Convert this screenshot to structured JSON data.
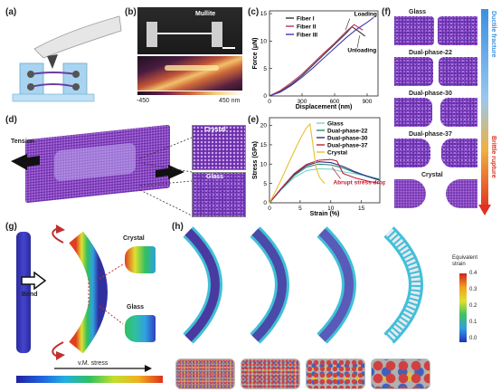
{
  "panels": {
    "a": "(a)",
    "b": "(b)",
    "c": "(c)",
    "d": "(d)",
    "e": "(e)",
    "f": "(f)",
    "g": "(g)",
    "h": "(h)"
  },
  "b": {
    "sem_label": "Mullite",
    "afm_left_tick": "-450",
    "afm_right_tick": "450 nm"
  },
  "c": {
    "legend": [
      "Fiber I",
      "Fiber II",
      "Fiber III"
    ],
    "legend_colors": [
      "#333333",
      "#c0305a",
      "#3a3ab0"
    ],
    "xlabel": "Displacement (nm)",
    "ylabel": "Force (μN)",
    "annot_loading": "Loading",
    "annot_unloading": "Unloading"
  },
  "d": {
    "tension_label": "Tension",
    "crystal_label": "Crystal",
    "glass_label": "Glass"
  },
  "e": {
    "legend": [
      "Glass",
      "Dual-phase-22",
      "Dual-phase-30",
      "Dual-phase-37",
      "Crystal"
    ],
    "legend_colors": [
      "#7fd2d2",
      "#2a8a6a",
      "#2e2e8a",
      "#c0203a",
      "#e8c030"
    ],
    "xlabel": "Strain (%)",
    "ylabel": "Stress (GPa)",
    "annot": "Abrupt stress drop"
  },
  "f": {
    "labels": [
      "Glass",
      "Dual-phase-22",
      "Dual-phase-30",
      "Dual-phase-37",
      "Crystal"
    ],
    "arrow_top": "Ductile fracture",
    "arrow_bottom": "Brittle rupture"
  },
  "g": {
    "bend_label": "Bend",
    "crystal_label": "Crystal",
    "glass_label": "Glass",
    "stress_label": "v.M. stress"
  },
  "h": {
    "colorbar_title": "Equivalent strain",
    "colorbar_ticks": [
      "0.4",
      "0.3",
      "0.2",
      "0.1",
      "0.0"
    ]
  },
  "chart_data": [
    {
      "type": "line",
      "xlabel": "Displacement (nm)",
      "ylabel": "Force (μN)",
      "xticks": [
        0,
        300,
        600,
        900
      ],
      "yticks": [
        0,
        5,
        10,
        15
      ],
      "xlim": [
        0,
        1000
      ],
      "ylim": [
        0,
        15.5
      ],
      "series": [
        {
          "name": "Fiber I",
          "x": [
            0,
            100,
            200,
            300,
            400,
            500,
            600,
            700,
            760,
            820,
            880
          ],
          "y": [
            0,
            0.8,
            2.1,
            3.7,
            5.6,
            7.5,
            9.4,
            11.3,
            12.6,
            11.8,
            10.9
          ]
        },
        {
          "name": "Fiber II",
          "x": [
            0,
            100,
            200,
            300,
            400,
            500,
            600,
            700,
            780,
            860
          ],
          "y": [
            0,
            1.0,
            2.4,
            4.0,
            5.9,
            7.8,
            9.6,
            11.6,
            13.0,
            12.0
          ]
        },
        {
          "name": "Fiber III",
          "x": [
            0,
            100,
            200,
            300,
            400,
            500,
            600,
            700,
            800,
            900,
            960
          ],
          "y": [
            0,
            0.7,
            1.9,
            3.4,
            5.1,
            6.9,
            8.7,
            10.5,
            12.1,
            13.4,
            14.3
          ]
        }
      ]
    },
    {
      "type": "line",
      "xlabel": "Strain (%)",
      "ylabel": "Stress (GPa)",
      "xticks": [
        0,
        5,
        10,
        15
      ],
      "yticks": [
        0,
        5,
        10,
        15,
        20
      ],
      "xlim": [
        0,
        18
      ],
      "ylim": [
        0,
        22
      ],
      "series": [
        {
          "name": "Glass",
          "x": [
            0,
            2,
            4,
            6,
            8,
            10,
            12,
            14,
            16,
            18
          ],
          "y": [
            0,
            3.5,
            6.5,
            8.3,
            8.8,
            8.7,
            8.0,
            7.5,
            6.8,
            6.2
          ]
        },
        {
          "name": "Dual-phase-22",
          "x": [
            0,
            2,
            4,
            6,
            8,
            10,
            12,
            14,
            16,
            18
          ],
          "y": [
            0,
            3.7,
            7.0,
            9.2,
            10.0,
            9.8,
            9.0,
            7.8,
            6.9,
            6.0
          ]
        },
        {
          "name": "Dual-phase-30",
          "x": [
            0,
            2,
            4,
            6,
            8,
            10,
            12,
            14,
            16,
            18
          ],
          "y": [
            0,
            3.8,
            7.3,
            9.6,
            10.6,
            10.4,
            9.4,
            8.0,
            6.8,
            5.8
          ]
        },
        {
          "name": "Dual-phase-37",
          "x": [
            0,
            2,
            4,
            6,
            8,
            10,
            11,
            12,
            14,
            16,
            18
          ],
          "y": [
            0,
            3.9,
            7.5,
            9.9,
            11.0,
            11.2,
            10.8,
            7.6,
            6.4,
            5.6,
            5.0
          ]
        },
        {
          "name": "Crystal",
          "x": [
            0,
            1,
            2,
            3,
            4,
            5,
            6,
            6.6,
            7.0,
            7.6,
            8.2,
            9
          ],
          "y": [
            0,
            3.0,
            6.3,
            9.8,
            13.2,
            16.5,
            19.3,
            20.4,
            16.0,
            9.0,
            6.5,
            5.0
          ]
        }
      ]
    }
  ]
}
